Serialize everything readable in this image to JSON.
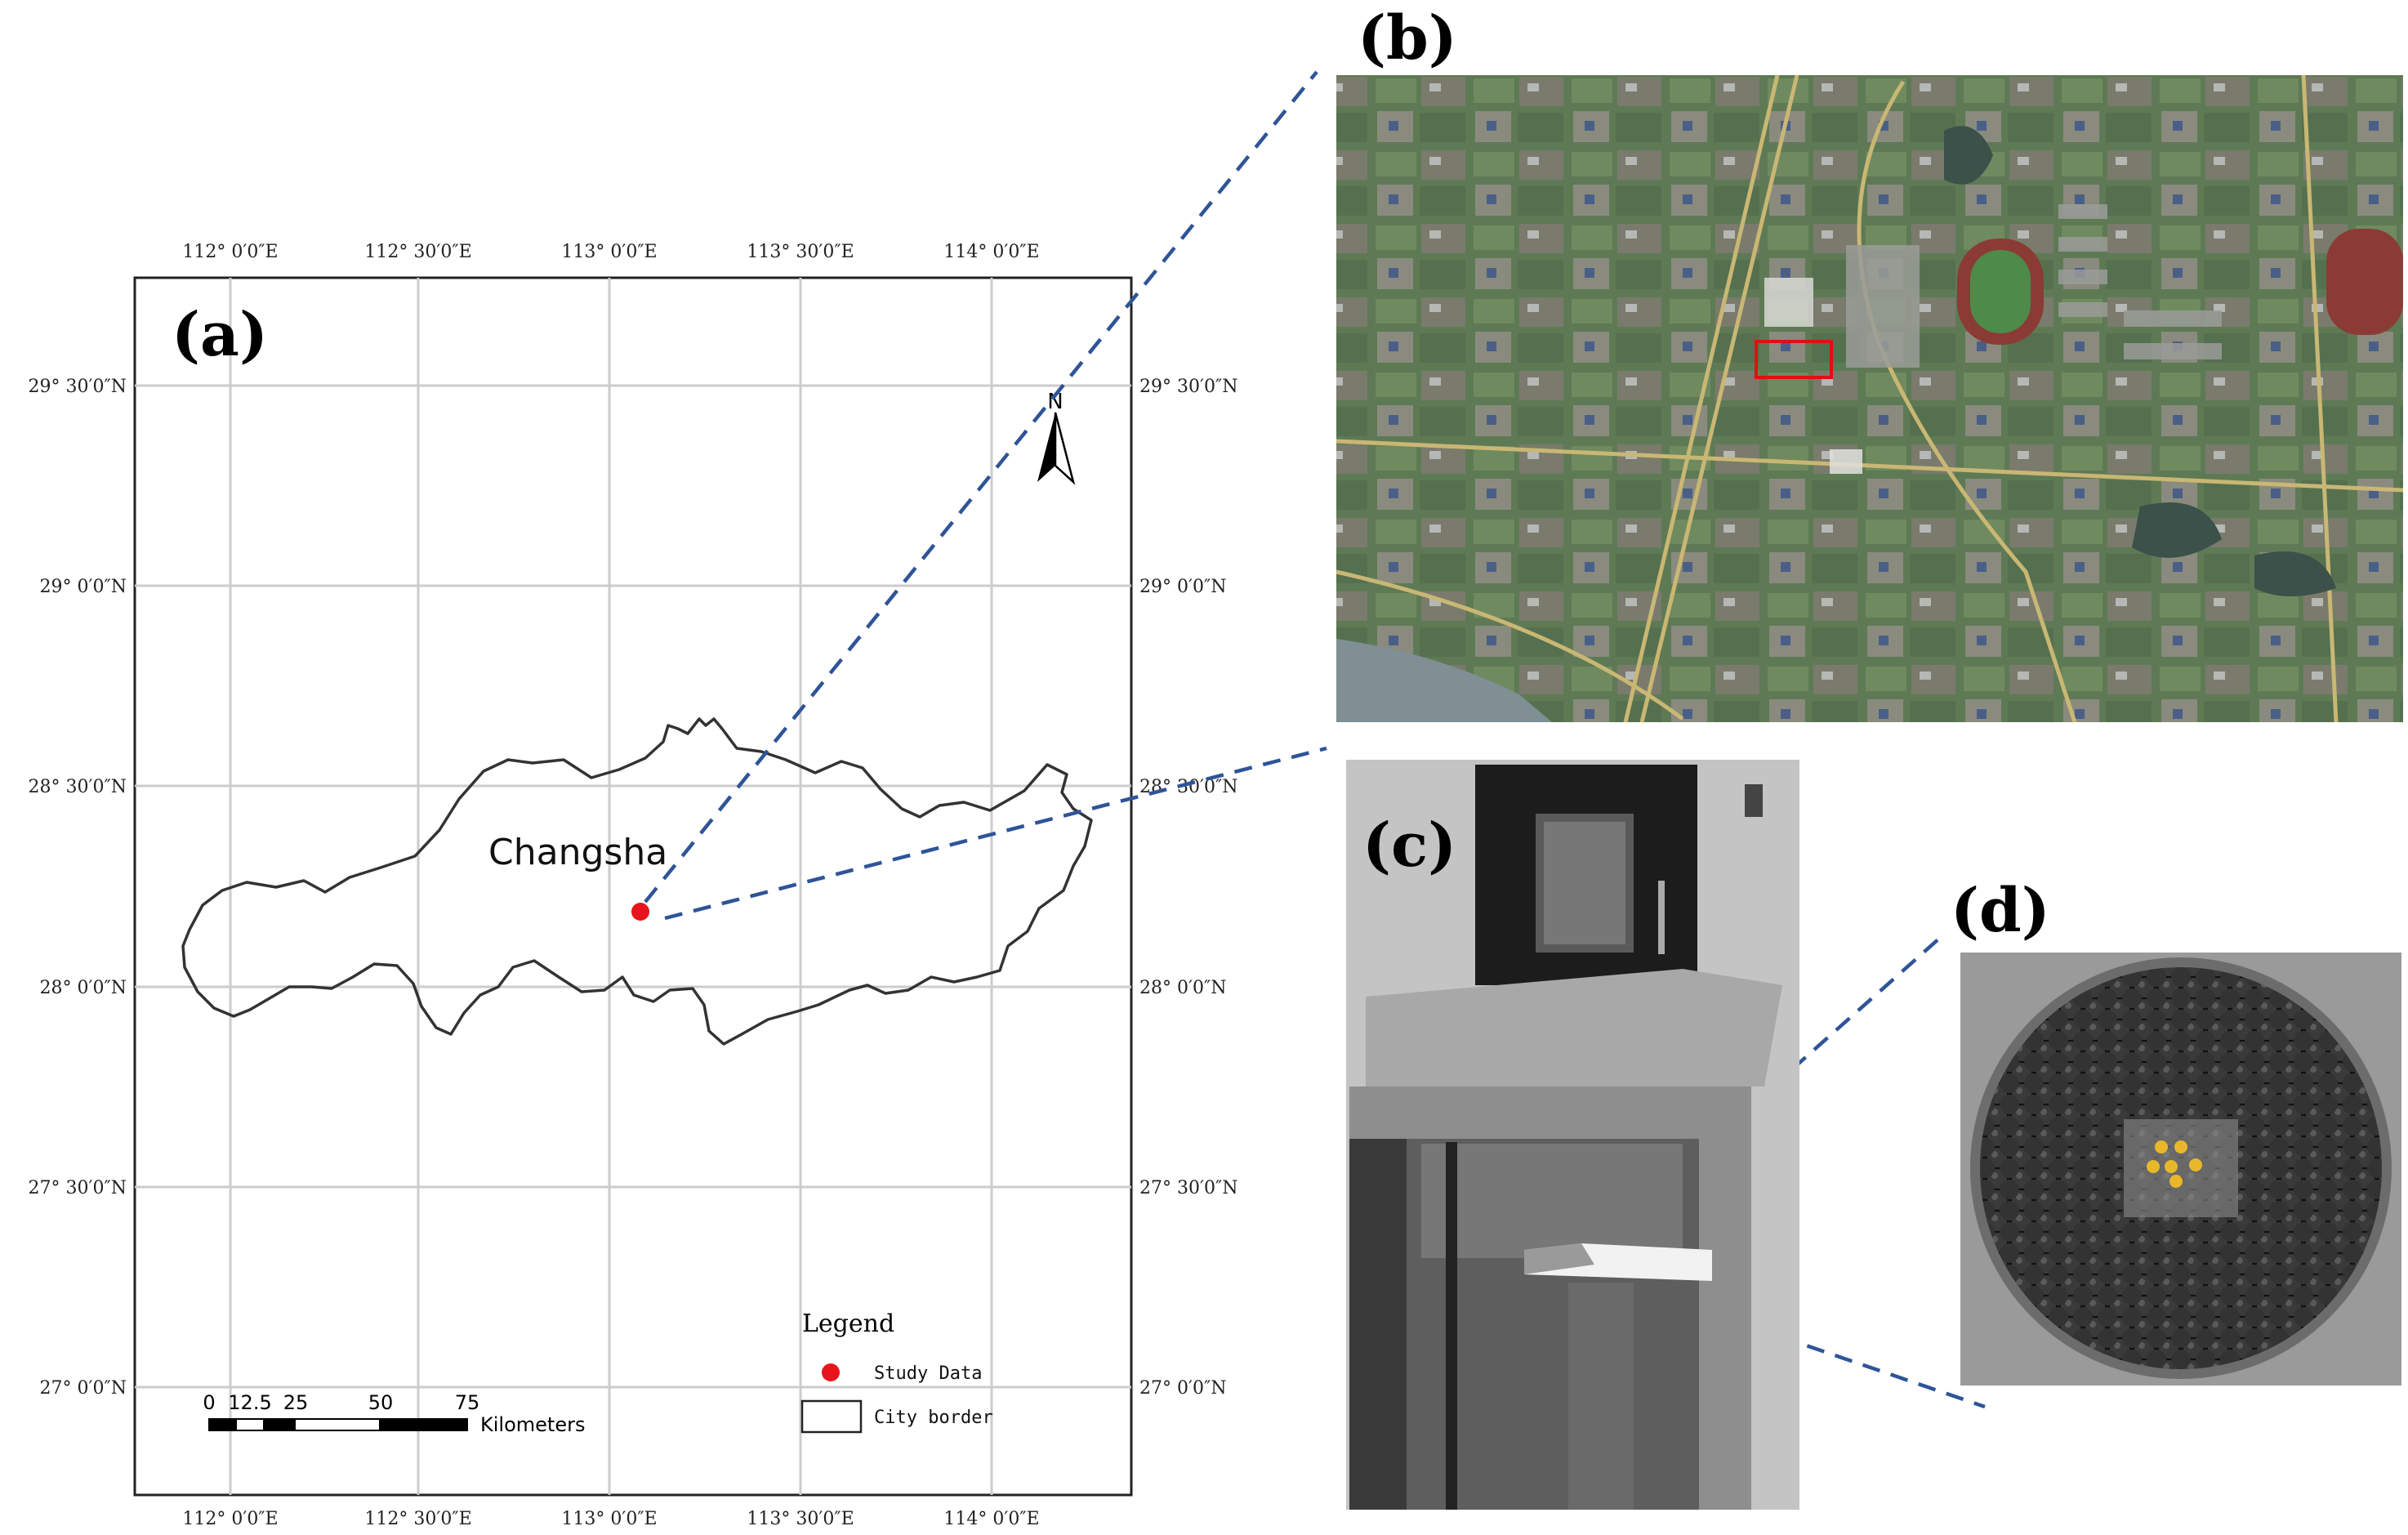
{
  "panels": {
    "a": "(a)",
    "b": "(b)",
    "c": "(c)",
    "d": "(d)"
  },
  "map": {
    "city_label": "Changsha",
    "top_lon": [
      "112° 0′0″E",
      "112° 30′0″E",
      "113° 0′0″E",
      "113° 30′0″E",
      "114° 0′0″E"
    ],
    "bottom_lon": [
      "112° 0′0″E",
      "112° 30′0″E",
      "113° 0′0″E",
      "113° 30′0″E",
      "114° 0′0″E"
    ],
    "left_lat": [
      "29° 30′0″N",
      "29° 0′0″N",
      "28° 30′0″N",
      "28° 0′0″N",
      "27° 30′0″N",
      "27° 0′0″N"
    ],
    "right_lat": [
      "29° 30′0″N",
      "29° 0′0″N",
      "28° 30′0″N",
      "28° 0′0″N",
      "27° 30′0″N",
      "27° 0′0″N"
    ],
    "north_label": "N",
    "scale": {
      "ticks": [
        "0",
        "12.5",
        "25",
        "50",
        "75"
      ],
      "unit": "Kilometers"
    },
    "legend": {
      "title": "Legend",
      "study_label": "Study Data",
      "border_label": "City border",
      "study_color": "#e8141b"
    }
  },
  "colors": {
    "connector": "#2f5497",
    "study_area_box": "#e01010",
    "sample_highlight": "#e8b82a"
  }
}
